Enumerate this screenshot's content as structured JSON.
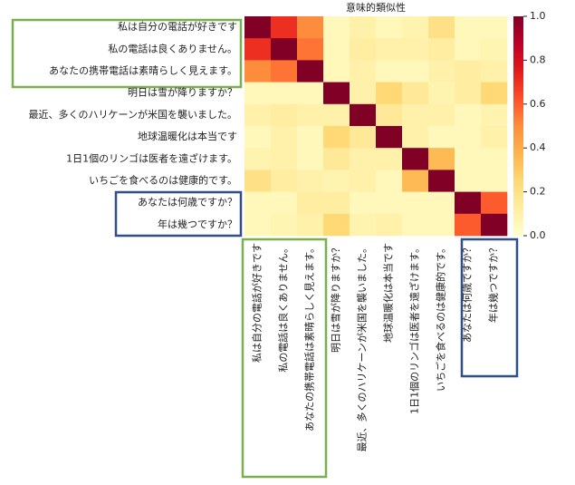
{
  "chart_data": {
    "type": "heatmap",
    "title": "意味的類似性",
    "categories": [
      "私は自分の電話が好きです",
      "私の電話は良くありません。",
      "あなたの携帯電話は素晴らしく見えます。",
      "明日は雪が降りますか？",
      "最近、多くのハリケーンが米国を襲いました。",
      "地球温暖化は本当です",
      "1日1個のリンゴは医者を遠ざけます。",
      "いちごを食べるのは健康的です。",
      "あなたは何歳ですか？",
      "年は幾つですか？"
    ],
    "values": [
      [
        1,
        0.7,
        0.5,
        0.05,
        0.1,
        0.05,
        0.08,
        0.2,
        0.05,
        0.05
      ],
      [
        0.7,
        1,
        0.55,
        0.05,
        0.12,
        0.1,
        0.1,
        0.12,
        0.05,
        0.07
      ],
      [
        0.5,
        0.55,
        1,
        0.05,
        0.1,
        0.05,
        0.05,
        0.1,
        0.12,
        0.1
      ],
      [
        0.05,
        0.05,
        0.05,
        1,
        0.1,
        0.25,
        0.15,
        0.08,
        0.12,
        0.25
      ],
      [
        0.1,
        0.12,
        0.1,
        0.1,
        1,
        0.15,
        0.1,
        0.1,
        0.05,
        0.08
      ],
      [
        0.05,
        0.1,
        0.05,
        0.25,
        0.15,
        1,
        0.1,
        0.05,
        0.05,
        0.1
      ],
      [
        0.08,
        0.1,
        0.05,
        0.15,
        0.1,
        0.1,
        1,
        0.35,
        0.05,
        0.05
      ],
      [
        0.2,
        0.12,
        0.1,
        0.08,
        0.1,
        0.05,
        0.35,
        1,
        0.05,
        0.05
      ],
      [
        0.05,
        0.05,
        0.12,
        0.12,
        0.05,
        0.05,
        0.05,
        0.05,
        1,
        0.6
      ],
      [
        0.05,
        0.07,
        0.1,
        0.25,
        0.08,
        0.1,
        0.05,
        0.05,
        0.6,
        1
      ]
    ],
    "colormap": "YlOrRd",
    "clim": [
      0,
      1
    ],
    "cticks": [
      {
        "value": 0,
        "label": "0.0"
      },
      {
        "value": 0.2,
        "label": "0.2"
      },
      {
        "value": 0.4,
        "label": "0.4"
      },
      {
        "value": 0.6,
        "label": "0.6"
      },
      {
        "value": 0.8,
        "label": "0.8"
      },
      {
        "value": 1,
        "label": "1.0"
      }
    ]
  }
}
